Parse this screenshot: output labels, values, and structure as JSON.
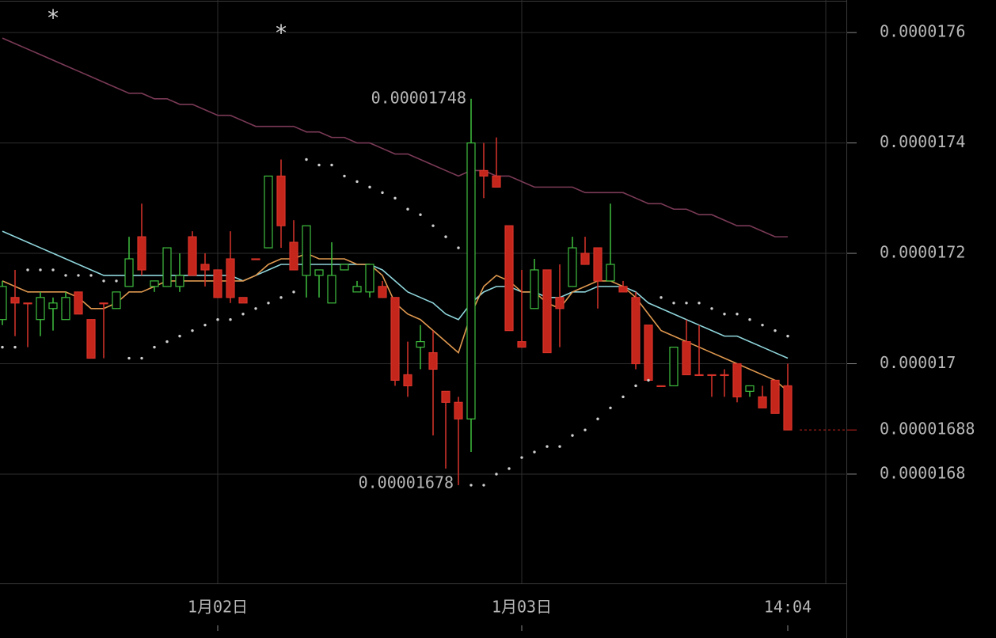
{
  "chart_data": {
    "type": "candlestick",
    "categories": [
      null,
      null,
      null,
      null,
      null,
      null,
      null,
      null,
      null,
      null,
      null,
      null,
      null,
      null,
      null,
      null,
      null,
      "1月02日",
      null,
      null,
      null,
      null,
      null,
      null,
      null,
      null,
      null,
      null,
      null,
      null,
      null,
      null,
      null,
      null,
      null,
      null,
      null,
      null,
      null,
      null,
      null,
      "1月03日",
      null,
      null,
      null,
      null,
      null,
      null,
      null,
      null,
      null,
      null,
      null,
      null,
      null,
      null,
      null,
      null,
      null,
      null,
      null,
      null,
      "14:04"
    ],
    "open": [
      1.708e-05,
      1.712e-05,
      1.711e-05,
      1.708e-05,
      1.71e-05,
      1.708e-05,
      1.713e-05,
      1.708e-05,
      1.711e-05,
      1.71e-05,
      1.714e-05,
      1.723e-05,
      1.714e-05,
      1.714e-05,
      1.714e-05,
      1.723e-05,
      1.718e-05,
      1.717e-05,
      1.719e-05,
      1.712e-05,
      1.719e-05,
      1.721e-05,
      1.734e-05,
      1.722e-05,
      1.716e-05,
      1.716e-05,
      1.711e-05,
      1.717e-05,
      1.713e-05,
      1.713e-05,
      1.714e-05,
      1.712e-05,
      1.698e-05,
      1.703e-05,
      1.702e-05,
      1.695e-05,
      1.693e-05,
      1.69e-05,
      1.735e-05,
      1.734e-05,
      1.725e-05,
      1.704e-05,
      1.71e-05,
      1.717e-05,
      1.712e-05,
      1.714e-05,
      1.72e-05,
      1.721e-05,
      1.715e-05,
      1.714e-05,
      1.712e-05,
      1.707e-05,
      1.696e-05,
      1.696e-05,
      1.704e-05,
      1.698e-05,
      1.698e-05,
      1.698e-05,
      1.7e-05,
      1.695e-05,
      1.694e-05,
      1.697e-05,
      1.696e-05
    ],
    "high": [
      1.715e-05,
      1.717e-05,
      1.711e-05,
      1.713e-05,
      1.712e-05,
      1.713e-05,
      1.713e-05,
      1.708e-05,
      1.711e-05,
      1.713e-05,
      1.723e-05,
      1.729e-05,
      1.715e-05,
      1.721e-05,
      1.72e-05,
      1.724e-05,
      1.72e-05,
      1.717e-05,
      1.724e-05,
      1.712e-05,
      1.719e-05,
      1.734e-05,
      1.737e-05,
      1.726e-05,
      1.725e-05,
      1.717e-05,
      1.722e-05,
      1.718e-05,
      1.715e-05,
      1.718e-05,
      1.715e-05,
      1.712e-05,
      1.704e-05,
      1.707e-05,
      1.706e-05,
      1.695e-05,
      1.694e-05,
      1.748e-05,
      1.74e-05,
      1.741e-05,
      1.725e-05,
      1.717e-05,
      1.719e-05,
      1.717e-05,
      1.718e-05,
      1.723e-05,
      1.723e-05,
      1.721e-05,
      1.729e-05,
      1.715e-05,
      1.713e-05,
      1.707e-05,
      1.696e-05,
      1.703e-05,
      1.708e-05,
      1.707e-05,
      1.698e-05,
      1.699e-05,
      1.7e-05,
      1.696e-05,
      1.696e-05,
      1.697e-05,
      1.7e-05
    ],
    "low": [
      1.707e-05,
      1.705e-05,
      1.703e-05,
      1.705e-05,
      1.706e-05,
      1.708e-05,
      1.709e-05,
      1.701e-05,
      1.701e-05,
      1.71e-05,
      1.714e-05,
      1.716e-05,
      1.713e-05,
      1.714e-05,
      1.713e-05,
      1.716e-05,
      1.714e-05,
      1.712e-05,
      1.711e-05,
      1.711e-05,
      1.719e-05,
      1.721e-05,
      1.721e-05,
      1.717e-05,
      1.712e-05,
      1.712e-05,
      1.711e-05,
      1.717e-05,
      1.713e-05,
      1.712e-05,
      1.712e-05,
      1.696e-05,
      1.694e-05,
      1.699e-05,
      1.687e-05,
      1.681e-05,
      1.678e-05,
      1.684e-05,
      1.73e-05,
      1.732e-05,
      1.706e-05,
      1.703e-05,
      1.71e-05,
      1.702e-05,
      1.703e-05,
      1.714e-05,
      1.718e-05,
      1.71e-05,
      1.715e-05,
      1.713e-05,
      1.699e-05,
      1.697e-05,
      1.696e-05,
      1.696e-05,
      1.698e-05,
      1.698e-05,
      1.694e-05,
      1.694e-05,
      1.693e-05,
      1.694e-05,
      1.692e-05,
      1.691e-05,
      1.688e-05
    ],
    "close": [
      1.714e-05,
      1.711e-05,
      1.711e-05,
      1.712e-05,
      1.711e-05,
      1.712e-05,
      1.709e-05,
      1.701e-05,
      1.711e-05,
      1.713e-05,
      1.719e-05,
      1.717e-05,
      1.715e-05,
      1.721e-05,
      1.716e-05,
      1.716e-05,
      1.717e-05,
      1.712e-05,
      1.712e-05,
      1.711e-05,
      1.719e-05,
      1.734e-05,
      1.725e-05,
      1.717e-05,
      1.725e-05,
      1.717e-05,
      1.716e-05,
      1.718e-05,
      1.714e-05,
      1.718e-05,
      1.712e-05,
      1.697e-05,
      1.696e-05,
      1.704e-05,
      1.699e-05,
      1.693e-05,
      1.69e-05,
      1.74e-05,
      1.734e-05,
      1.732e-05,
      1.706e-05,
      1.703e-05,
      1.717e-05,
      1.702e-05,
      1.71e-05,
      1.721e-05,
      1.718e-05,
      1.715e-05,
      1.718e-05,
      1.713e-05,
      1.7e-05,
      1.697e-05,
      1.696e-05,
      1.703e-05,
      1.698e-05,
      1.698e-05,
      1.698e-05,
      1.698e-05,
      1.694e-05,
      1.696e-05,
      1.692e-05,
      1.691e-05,
      1.688e-05
    ],
    "up_color": "#3fbf3f",
    "down_color": "#c4261c",
    "overlays": [
      {
        "type": "line",
        "color": "#7a3a56",
        "values": [
          1.759e-05,
          1.758e-05,
          1.757e-05,
          1.756e-05,
          1.755e-05,
          1.754e-05,
          1.753e-05,
          1.752e-05,
          1.751e-05,
          1.75e-05,
          1.749e-05,
          1.749e-05,
          1.748e-05,
          1.748e-05,
          1.747e-05,
          1.747e-05,
          1.746e-05,
          1.745e-05,
          1.745e-05,
          1.744e-05,
          1.743e-05,
          1.743e-05,
          1.743e-05,
          1.743e-05,
          1.742e-05,
          1.742e-05,
          1.741e-05,
          1.741e-05,
          1.74e-05,
          1.74e-05,
          1.739e-05,
          1.738e-05,
          1.738e-05,
          1.737e-05,
          1.736e-05,
          1.735e-05,
          1.734e-05,
          1.735e-05,
          1.735e-05,
          1.734e-05,
          1.734e-05,
          1.733e-05,
          1.732e-05,
          1.732e-05,
          1.732e-05,
          1.732e-05,
          1.731e-05,
          1.731e-05,
          1.731e-05,
          1.731e-05,
          1.73e-05,
          1.729e-05,
          1.729e-05,
          1.728e-05,
          1.728e-05,
          1.727e-05,
          1.727e-05,
          1.726e-05,
          1.725e-05,
          1.725e-05,
          1.724e-05,
          1.723e-05,
          1.723e-05
        ]
      },
      {
        "type": "line",
        "color": "#8fd6dc",
        "values": [
          1.724e-05,
          1.723e-05,
          1.722e-05,
          1.721e-05,
          1.72e-05,
          1.719e-05,
          1.718e-05,
          1.717e-05,
          1.716e-05,
          1.716e-05,
          1.716e-05,
          1.716e-05,
          1.716e-05,
          1.716e-05,
          1.716e-05,
          1.716e-05,
          1.716e-05,
          1.716e-05,
          1.716e-05,
          1.715e-05,
          1.716e-05,
          1.717e-05,
          1.718e-05,
          1.718e-05,
          1.718e-05,
          1.718e-05,
          1.718e-05,
          1.718e-05,
          1.718e-05,
          1.718e-05,
          1.717e-05,
          1.715e-05,
          1.713e-05,
          1.712e-05,
          1.711e-05,
          1.709e-05,
          1.708e-05,
          1.711e-05,
          1.713e-05,
          1.714e-05,
          1.714e-05,
          1.713e-05,
          1.713e-05,
          1.712e-05,
          1.712e-05,
          1.713e-05,
          1.713e-05,
          1.714e-05,
          1.714e-05,
          1.714e-05,
          1.713e-05,
          1.711e-05,
          1.71e-05,
          1.709e-05,
          1.708e-05,
          1.707e-05,
          1.706e-05,
          1.705e-05,
          1.705e-05,
          1.704e-05,
          1.703e-05,
          1.702e-05,
          1.701e-05
        ]
      },
      {
        "type": "line",
        "color": "#e0994f",
        "values": [
          1.715e-05,
          1.714e-05,
          1.713e-05,
          1.713e-05,
          1.713e-05,
          1.713e-05,
          1.712e-05,
          1.71e-05,
          1.71e-05,
          1.711e-05,
          1.713e-05,
          1.713e-05,
          1.714e-05,
          1.715e-05,
          1.715e-05,
          1.715e-05,
          1.715e-05,
          1.715e-05,
          1.715e-05,
          1.715e-05,
          1.716e-05,
          1.718e-05,
          1.719e-05,
          1.719e-05,
          1.72e-05,
          1.719e-05,
          1.719e-05,
          1.719e-05,
          1.718e-05,
          1.718e-05,
          1.716e-05,
          1.711e-05,
          1.709e-05,
          1.708e-05,
          1.706e-05,
          1.704e-05,
          1.702e-05,
          1.709e-05,
          1.714e-05,
          1.716e-05,
          1.715e-05,
          1.713e-05,
          1.713e-05,
          1.711e-05,
          1.71e-05,
          1.713e-05,
          1.714e-05,
          1.715e-05,
          1.715e-05,
          1.714e-05,
          1.712e-05,
          1.709e-05,
          1.706e-05,
          1.705e-05,
          1.704e-05,
          1.703e-05,
          1.702e-05,
          1.701e-05,
          1.7e-05,
          1.699e-05,
          1.698e-05,
          1.697e-05,
          1.695e-05
        ]
      },
      {
        "type": "dots",
        "color": "#d0d0d0",
        "values": [
          1.703e-05,
          1.703e-05,
          1.717e-05,
          1.717e-05,
          1.717e-05,
          1.716e-05,
          1.716e-05,
          1.716e-05,
          1.715e-05,
          1.715e-05,
          1.701e-05,
          1.701e-05,
          1.703e-05,
          1.704e-05,
          1.705e-05,
          1.706e-05,
          1.707e-05,
          1.708e-05,
          1.708e-05,
          1.709e-05,
          1.71e-05,
          1.711e-05,
          1.712e-05,
          1.713e-05,
          1.737e-05,
          1.736e-05,
          1.736e-05,
          1.734e-05,
          1.733e-05,
          1.732e-05,
          1.731e-05,
          1.73e-05,
          1.728e-05,
          1.727e-05,
          1.725e-05,
          1.723e-05,
          1.721e-05,
          1.678e-05,
          1.678e-05,
          1.68e-05,
          1.681e-05,
          1.683e-05,
          1.684e-05,
          1.685e-05,
          1.685e-05,
          1.687e-05,
          1.688e-05,
          1.69e-05,
          1.692e-05,
          1.694e-05,
          1.696e-05,
          1.697e-05,
          1.712e-05,
          1.711e-05,
          1.711e-05,
          1.711e-05,
          1.71e-05,
          1.709e-05,
          1.709e-05,
          1.708e-05,
          1.707e-05,
          1.706e-05,
          1.705e-05
        ]
      }
    ],
    "high_label": 1.748e-05,
    "low_label": 1.678e-05,
    "last_price": 1.688e-05,
    "annotations": [
      "*",
      "*"
    ],
    "ylim": [
      1.6602e-05,
      1.7659e-05
    ],
    "yticks": [
      1.68e-05,
      1.7e-05,
      1.72e-05,
      1.74e-05,
      1.76e-05
    ],
    "grid": true
  }
}
